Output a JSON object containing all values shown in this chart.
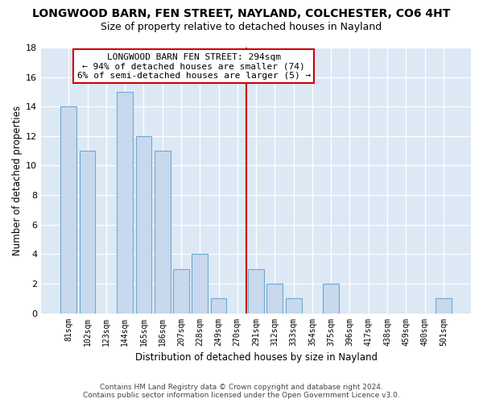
{
  "title": "LONGWOOD BARN, FEN STREET, NAYLAND, COLCHESTER, CO6 4HT",
  "subtitle": "Size of property relative to detached houses in Nayland",
  "xlabel": "Distribution of detached houses by size in Nayland",
  "ylabel": "Number of detached properties",
  "categories": [
    "81sqm",
    "102sqm",
    "123sqm",
    "144sqm",
    "165sqm",
    "186sqm",
    "207sqm",
    "228sqm",
    "249sqm",
    "270sqm",
    "291sqm",
    "312sqm",
    "333sqm",
    "354sqm",
    "375sqm",
    "396sqm",
    "417sqm",
    "438sqm",
    "459sqm",
    "480sqm",
    "501sqm"
  ],
  "values": [
    14,
    11,
    0,
    15,
    12,
    11,
    3,
    4,
    1,
    0,
    3,
    2,
    1,
    0,
    2,
    0,
    0,
    0,
    0,
    0,
    1
  ],
  "bar_color": "#c8d9ee",
  "bar_edge_color": "#6fa8d0",
  "fig_background": "#ffffff",
  "ax_background": "#dce9f5",
  "grid_color": "#ffffff",
  "vline_color": "#cc0000",
  "vline_index": 10,
  "annotation_title": "LONGWOOD BARN FEN STREET: 294sqm",
  "annotation_line1": "← 94% of detached houses are smaller (74)",
  "annotation_line2": "6% of semi-detached houses are larger (5) →",
  "annotation_box_edge_color": "#cc0000",
  "footer_line1": "Contains HM Land Registry data © Crown copyright and database right 2024.",
  "footer_line2": "Contains public sector information licensed under the Open Government Licence v3.0.",
  "ylim": [
    0,
    18
  ],
  "yticks": [
    0,
    2,
    4,
    6,
    8,
    10,
    12,
    14,
    16,
    18
  ],
  "title_fontsize": 10,
  "subtitle_fontsize": 9,
  "xlabel_fontsize": 8.5,
  "ylabel_fontsize": 8.5,
  "tick_fontsize": 7,
  "footer_fontsize": 6.5,
  "annotation_fontsize": 8
}
